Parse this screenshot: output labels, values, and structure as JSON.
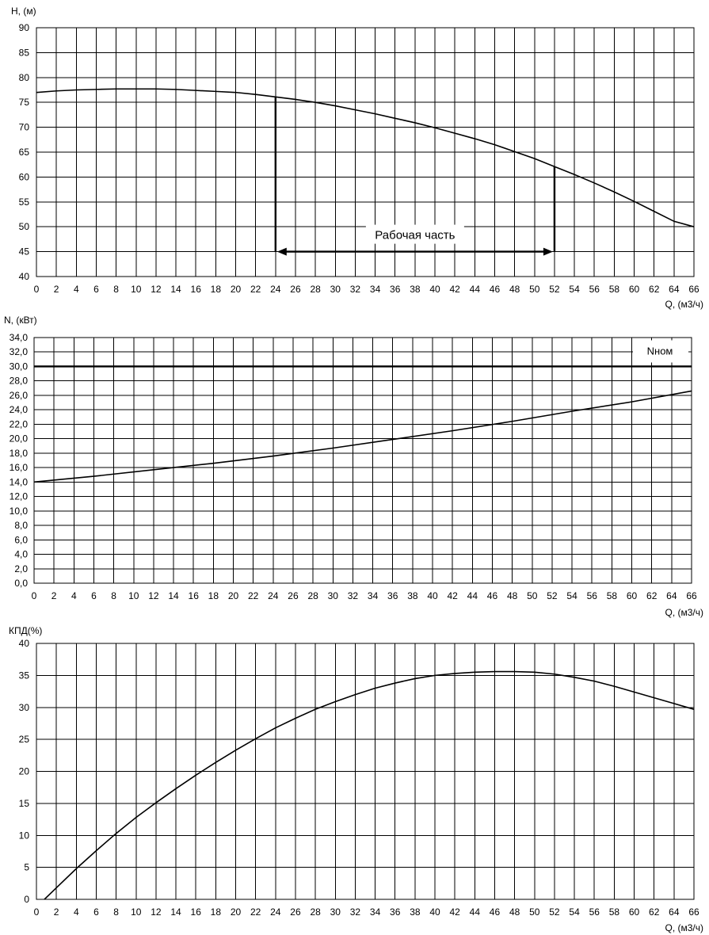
{
  "chart_data": [
    {
      "type": "line",
      "ylabel": "H, (м)",
      "xlabel": "Q, (м3/ч)",
      "xlim": [
        0,
        66
      ],
      "ylim": [
        40,
        90
      ],
      "x_ticks": [
        0,
        2,
        4,
        6,
        8,
        10,
        12,
        14,
        16,
        18,
        20,
        22,
        24,
        26,
        28,
        30,
        32,
        34,
        36,
        38,
        40,
        42,
        44,
        46,
        48,
        50,
        52,
        54,
        56,
        58,
        60,
        62,
        64,
        66
      ],
      "y_ticks": [
        "40",
        "45",
        "50",
        "55",
        "60",
        "65",
        "70",
        "75",
        "80",
        "85",
        "90"
      ],
      "series": [
        {
          "x": [
            0,
            2,
            4,
            6,
            8,
            10,
            12,
            14,
            16,
            18,
            20,
            22,
            24,
            26,
            28,
            30,
            32,
            34,
            36,
            38,
            40,
            42,
            44,
            46,
            48,
            50,
            52,
            54,
            56,
            58,
            60,
            62,
            64,
            66
          ],
          "y": [
            77.0,
            77.3,
            77.5,
            77.6,
            77.7,
            77.7,
            77.7,
            77.6,
            77.4,
            77.2,
            77.0,
            76.6,
            76.1,
            75.6,
            75.0,
            74.3,
            73.5,
            72.7,
            71.8,
            70.9,
            69.9,
            68.8,
            67.7,
            66.5,
            65.1,
            63.7,
            62.1,
            60.5,
            58.8,
            57.0,
            55.1,
            53.1,
            51.1,
            50.0
          ]
        }
      ],
      "range_annotation": {
        "label": "Рабочая часть",
        "x_start": 24,
        "x_end": 52,
        "y": 45,
        "y_top_start": 76.1,
        "y_top_end": 62.1
      }
    },
    {
      "type": "line",
      "ylabel": "N, (кВт)",
      "xlabel": "Q, (м3/ч)",
      "xlim": [
        0,
        66
      ],
      "ylim": [
        0,
        34
      ],
      "x_ticks": [
        0,
        2,
        4,
        6,
        8,
        10,
        12,
        14,
        16,
        18,
        20,
        22,
        24,
        26,
        28,
        30,
        32,
        34,
        36,
        38,
        40,
        42,
        44,
        46,
        48,
        50,
        52,
        54,
        56,
        58,
        60,
        62,
        64,
        66
      ],
      "y_ticks": [
        "0,0",
        "2,0",
        "4,0",
        "6,0",
        "8,0",
        "10,0",
        "12,0",
        "14,0",
        "16,0",
        "18,0",
        "20,0",
        "22,0",
        "24,0",
        "26,0",
        "28,0",
        "30,0",
        "32,0",
        "34,0"
      ],
      "series": [
        {
          "x": [
            0,
            6,
            12,
            18,
            24,
            30,
            36,
            42,
            48,
            54,
            60,
            66
          ],
          "y": [
            14.0,
            14.8,
            15.7,
            16.6,
            17.6,
            18.7,
            19.9,
            21.1,
            22.4,
            23.8,
            25.1,
            26.6
          ]
        }
      ],
      "reference_line": {
        "label": "Nном",
        "y": 30.0
      }
    },
    {
      "type": "line",
      "ylabel": "КПД(%)",
      "xlabel": "Q, (м3/ч)",
      "xlim": [
        0,
        66
      ],
      "ylim": [
        0,
        40
      ],
      "x_ticks": [
        0,
        2,
        4,
        6,
        8,
        10,
        12,
        14,
        16,
        18,
        20,
        22,
        24,
        26,
        28,
        30,
        32,
        34,
        36,
        38,
        40,
        42,
        44,
        46,
        48,
        50,
        52,
        54,
        56,
        58,
        60,
        62,
        64,
        66
      ],
      "y_ticks": [
        "0",
        "5",
        "10",
        "15",
        "20",
        "25",
        "30",
        "35",
        "40"
      ],
      "series": [
        {
          "x": [
            0.8,
            2,
            4,
            6,
            8,
            10,
            12,
            14,
            16,
            18,
            20,
            22,
            24,
            26,
            28,
            30,
            32,
            34,
            36,
            38,
            40,
            42,
            44,
            46,
            48,
            50,
            52,
            54,
            56,
            58,
            60,
            62,
            64,
            66
          ],
          "y": [
            0,
            1.8,
            4.8,
            7.6,
            10.3,
            12.8,
            15.1,
            17.3,
            19.4,
            21.4,
            23.3,
            25.1,
            26.8,
            28.3,
            29.7,
            30.9,
            32.0,
            33.0,
            33.8,
            34.5,
            35.0,
            35.3,
            35.5,
            35.6,
            35.6,
            35.5,
            35.2,
            34.7,
            34.1,
            33.3,
            32.4,
            31.5,
            30.6,
            29.7
          ]
        }
      ]
    }
  ]
}
